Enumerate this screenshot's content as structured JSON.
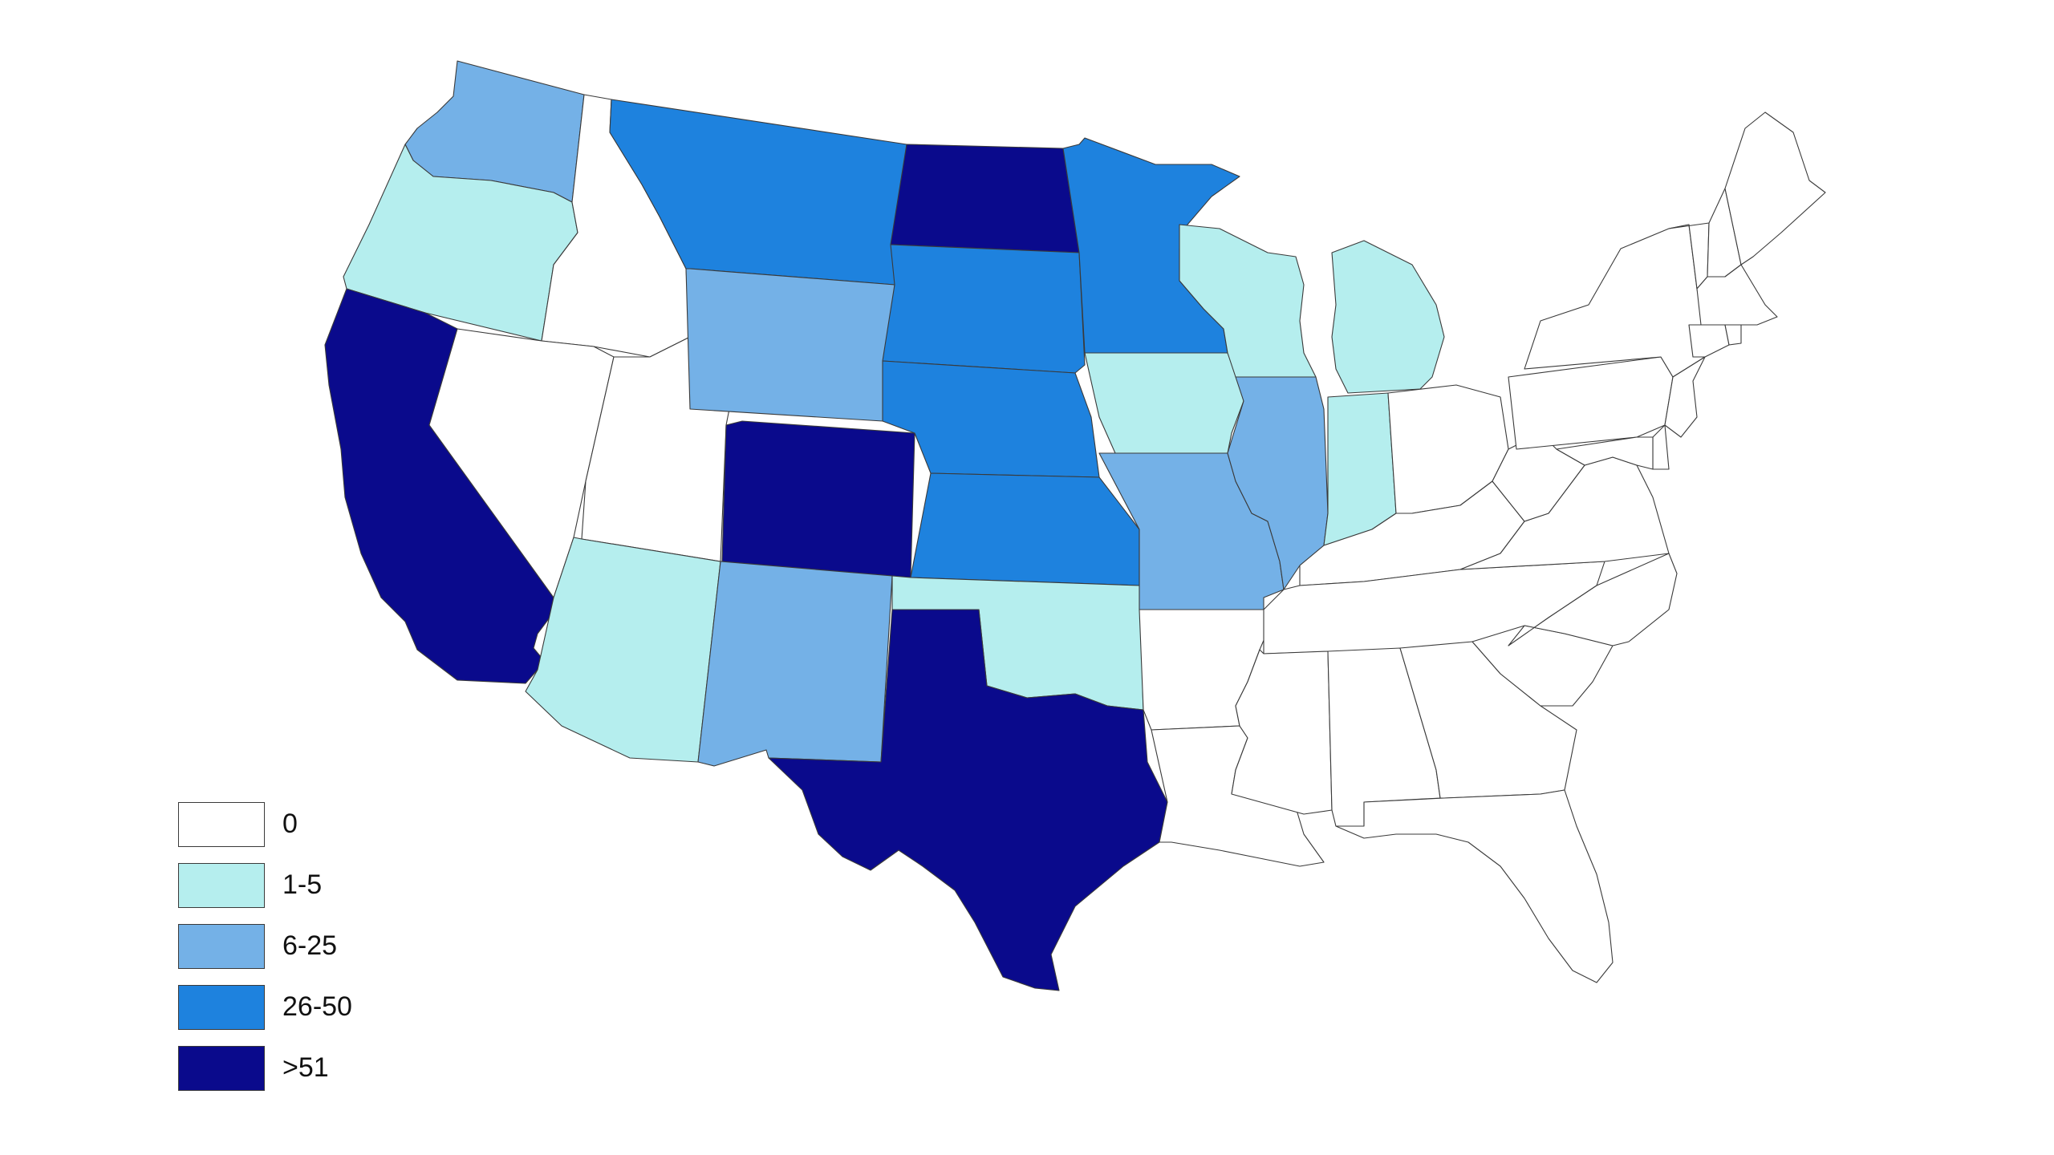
{
  "map": {
    "classes": [
      {
        "key": "c0",
        "label": "0",
        "color": "#ffffff"
      },
      {
        "key": "c1",
        "label": "1-5",
        "color": "#b5eeee"
      },
      {
        "key": "c2",
        "label": "6-25",
        "color": "#74b1e7"
      },
      {
        "key": "c3",
        "label": "26-50",
        "color": "#1e82de"
      },
      {
        "key": "c4",
        "label": ">51",
        "color": "#0a0a8c"
      }
    ],
    "states": [
      {
        "id": "WA",
        "class": "c2"
      },
      {
        "id": "OR",
        "class": "c1"
      },
      {
        "id": "CA",
        "class": "c4"
      },
      {
        "id": "ID",
        "class": "c0"
      },
      {
        "id": "NV",
        "class": "c0"
      },
      {
        "id": "UT",
        "class": "c0"
      },
      {
        "id": "AZ",
        "class": "c1"
      },
      {
        "id": "MT",
        "class": "c3"
      },
      {
        "id": "WY",
        "class": "c2"
      },
      {
        "id": "CO",
        "class": "c4"
      },
      {
        "id": "NM",
        "class": "c2"
      },
      {
        "id": "ND",
        "class": "c4"
      },
      {
        "id": "SD",
        "class": "c3"
      },
      {
        "id": "NE",
        "class": "c3"
      },
      {
        "id": "KS",
        "class": "c3"
      },
      {
        "id": "OK",
        "class": "c1"
      },
      {
        "id": "TX",
        "class": "c4"
      },
      {
        "id": "MN",
        "class": "c3"
      },
      {
        "id": "IA",
        "class": "c1"
      },
      {
        "id": "MO",
        "class": "c2"
      },
      {
        "id": "AR",
        "class": "c0"
      },
      {
        "id": "LA",
        "class": "c0"
      },
      {
        "id": "WI",
        "class": "c1"
      },
      {
        "id": "IL",
        "class": "c2"
      },
      {
        "id": "MI",
        "class": "c1"
      },
      {
        "id": "IN",
        "class": "c1"
      },
      {
        "id": "OH",
        "class": "c0"
      },
      {
        "id": "KY",
        "class": "c0"
      },
      {
        "id": "TN",
        "class": "c0"
      },
      {
        "id": "MS",
        "class": "c0"
      },
      {
        "id": "AL",
        "class": "c0"
      },
      {
        "id": "GA",
        "class": "c0"
      },
      {
        "id": "FL",
        "class": "c0"
      },
      {
        "id": "SC",
        "class": "c0"
      },
      {
        "id": "NC",
        "class": "c0"
      },
      {
        "id": "VA",
        "class": "c0"
      },
      {
        "id": "WV",
        "class": "c0"
      },
      {
        "id": "PA",
        "class": "c0"
      },
      {
        "id": "NY",
        "class": "c0"
      },
      {
        "id": "VT",
        "class": "c0"
      },
      {
        "id": "NH",
        "class": "c0"
      },
      {
        "id": "ME",
        "class": "c0"
      },
      {
        "id": "MA",
        "class": "c0"
      },
      {
        "id": "CT",
        "class": "c0"
      },
      {
        "id": "RI",
        "class": "c0"
      },
      {
        "id": "NJ",
        "class": "c0"
      },
      {
        "id": "DE",
        "class": "c0"
      },
      {
        "id": "MD",
        "class": "c0"
      }
    ]
  }
}
